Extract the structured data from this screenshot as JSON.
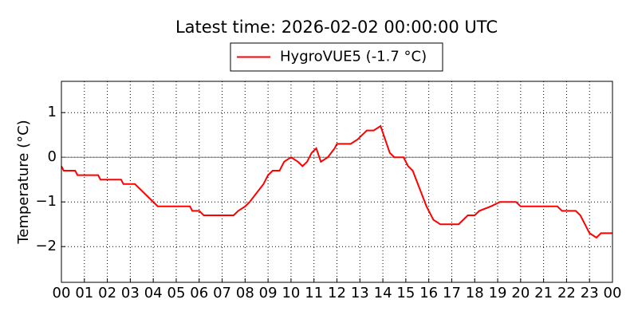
{
  "chart_data": {
    "type": "line",
    "title": "Latest time: 2026-02-02 00:00:00 UTC",
    "ylabel": "Temperature (°C)",
    "x": [
      0,
      0.1,
      0.6,
      0.7,
      1,
      1.6,
      1.7,
      2,
      2.6,
      2.7,
      3,
      3.2,
      3.4,
      3.6,
      3.8,
      4,
      4.2,
      5,
      5.6,
      5.7,
      6,
      6.2,
      7,
      7.5,
      7.7,
      8,
      8.2,
      8.5,
      8.8,
      9,
      9.2,
      9.5,
      9.7,
      10,
      10.3,
      10.5,
      10.7,
      10.9,
      11.1,
      11.3,
      11.6,
      11.9,
      12,
      12.3,
      12.6,
      12.9,
      13.1,
      13.3,
      13.6,
      13.9,
      14.1,
      14.3,
      14.5,
      14.9,
      15.1,
      15.3,
      15.6,
      15.9,
      16.2,
      16.5,
      17,
      17.3,
      17.5,
      17.7,
      18,
      18.2,
      18.7,
      19.1,
      19.8,
      20,
      21,
      21.6,
      21.8,
      22.4,
      22.6,
      22.8,
      23,
      23.3,
      23.5,
      24
    ],
    "series": [
      {
        "name": "HygroVUE5 (-1.7 °C)",
        "color": "#ff0000",
        "values": [
          -0.2,
          -0.3,
          -0.3,
          -0.4,
          -0.4,
          -0.4,
          -0.5,
          -0.5,
          -0.5,
          -0.6,
          -0.6,
          -0.6,
          -0.7,
          -0.8,
          -0.9,
          -1.0,
          -1.1,
          -1.1,
          -1.1,
          -1.2,
          -1.2,
          -1.3,
          -1.3,
          -1.3,
          -1.2,
          -1.1,
          -1.0,
          -0.8,
          -0.6,
          -0.4,
          -0.3,
          -0.3,
          -0.1,
          0.0,
          -0.1,
          -0.2,
          -0.1,
          0.1,
          0.2,
          -0.1,
          0.0,
          0.2,
          0.3,
          0.3,
          0.3,
          0.4,
          0.5,
          0.6,
          0.6,
          0.7,
          0.4,
          0.1,
          0.0,
          0.0,
          -0.2,
          -0.3,
          -0.7,
          -1.1,
          -1.4,
          -1.5,
          -1.5,
          -1.5,
          -1.4,
          -1.3,
          -1.3,
          -1.2,
          -1.1,
          -1.0,
          -1.0,
          -1.1,
          -1.1,
          -1.1,
          -1.2,
          -1.2,
          -1.3,
          -1.5,
          -1.7,
          -1.8,
          -1.7,
          -1.7
        ]
      }
    ],
    "xlim": [
      0,
      24
    ],
    "xticks": [
      {
        "value": 0,
        "label": "00"
      },
      {
        "value": 1,
        "label": "01"
      },
      {
        "value": 2,
        "label": "02"
      },
      {
        "value": 3,
        "label": "03"
      },
      {
        "value": 4,
        "label": "04"
      },
      {
        "value": 5,
        "label": "05"
      },
      {
        "value": 6,
        "label": "06"
      },
      {
        "value": 7,
        "label": "07"
      },
      {
        "value": 8,
        "label": "08"
      },
      {
        "value": 9,
        "label": "09"
      },
      {
        "value": 10,
        "label": "10"
      },
      {
        "value": 11,
        "label": "11"
      },
      {
        "value": 12,
        "label": "12"
      },
      {
        "value": 13,
        "label": "13"
      },
      {
        "value": 14,
        "label": "14"
      },
      {
        "value": 15,
        "label": "15"
      },
      {
        "value": 16,
        "label": "16"
      },
      {
        "value": 17,
        "label": "17"
      },
      {
        "value": 18,
        "label": "18"
      },
      {
        "value": 19,
        "label": "19"
      },
      {
        "value": 20,
        "label": "20"
      },
      {
        "value": 21,
        "label": "21"
      },
      {
        "value": 22,
        "label": "22"
      },
      {
        "value": 23,
        "label": "23"
      },
      {
        "value": 24,
        "label": "00"
      }
    ],
    "ylim": [
      -2.8,
      1.7
    ],
    "yticks": [
      {
        "value": -2,
        "label": "−2"
      },
      {
        "value": -1,
        "label": "−1"
      },
      0,
      1
    ],
    "grid": true,
    "zero_line": true,
    "legend": "top"
  }
}
